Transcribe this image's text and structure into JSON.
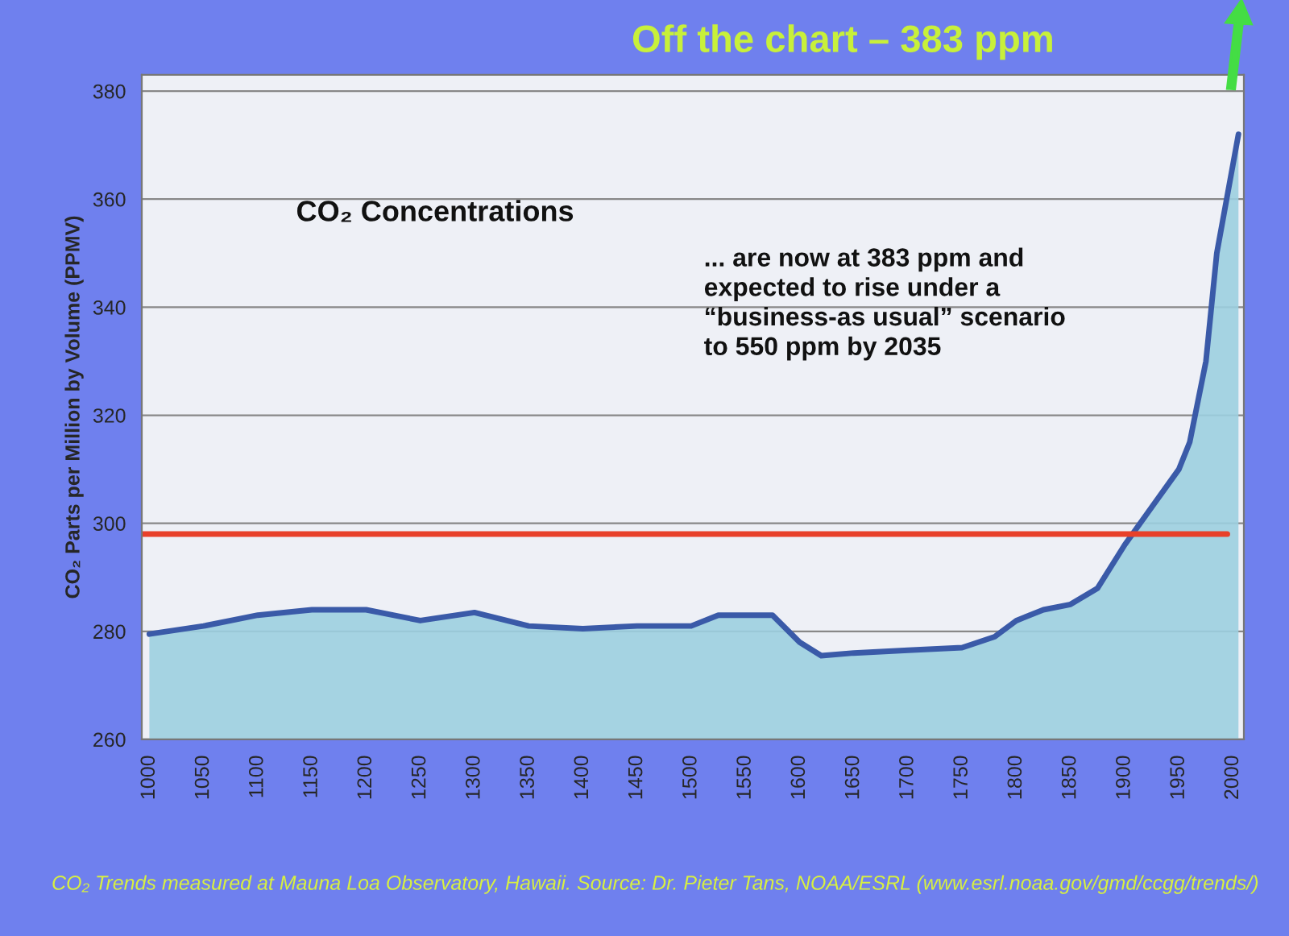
{
  "chart_data": {
    "type": "area",
    "title": "Off the chart – 383 ppm",
    "subtitle": "CO₂ Concentrations",
    "ylabel": "CO₂ Parts per Million by Volume (PPMV)",
    "x": [
      1000,
      1050,
      1100,
      1150,
      1200,
      1250,
      1300,
      1350,
      1400,
      1450,
      1500,
      1525,
      1575,
      1600,
      1620,
      1650,
      1700,
      1750,
      1780,
      1800,
      1825,
      1850,
      1875,
      1900,
      1925,
      1950,
      1960,
      1975,
      1985,
      2005
    ],
    "series": [
      {
        "color": "#3a5aa8",
        "values": [
          279.5,
          281,
          283,
          284,
          284,
          282,
          283.5,
          281,
          280.5,
          281,
          281,
          283,
          283,
          278,
          275.5,
          276,
          276.5,
          277,
          279,
          282,
          284,
          285,
          288,
          296,
          303,
          310,
          315,
          330,
          350,
          372
        ]
      }
    ],
    "xlim": [
      993,
      2010
    ],
    "ylim": [
      260,
      383
    ],
    "xticks": [
      1000,
      1050,
      1100,
      1150,
      1200,
      1250,
      1300,
      1350,
      1400,
      1450,
      1500,
      1550,
      1600,
      1650,
      1700,
      1750,
      1800,
      1850,
      1900,
      1950,
      2000
    ],
    "yticks": [
      260,
      280,
      300,
      320,
      340,
      360,
      380
    ],
    "grid": "y",
    "legend": false,
    "ref_lines": [
      {
        "axis": "y",
        "value": 298,
        "color": "#e8402a"
      }
    ],
    "annotations": [
      "... are now at 383 ppm and\nexpected to rise under a\n“business-as usual” scenario\nto 550 ppm by 2035",
      "CO₂ Trends measured at Mauna Loa Observatory, Hawaii. Source: Dr. Pieter Tans, NOAA/ESRL (www.esrl.noaa.gov/gmd/ccgg/trends/)"
    ]
  }
}
